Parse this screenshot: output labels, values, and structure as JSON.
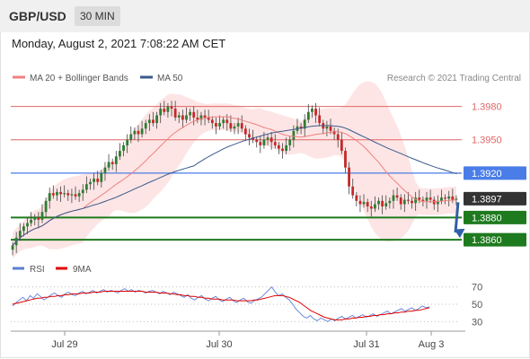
{
  "header": {
    "symbol": "GBP/USD",
    "timeframe": "30 MIN",
    "datetime": "Monday, August 2, 2021 7:08:22 AM CET",
    "credit": "Research © 2021 Trading Central"
  },
  "colors": {
    "ma20": "#f08080",
    "ma50": "#3a5a8c",
    "band_fill": "#fde0e0",
    "candle_up": "#2e7d32",
    "candle_down": "#c62828",
    "resistance": "#e06666",
    "pivot": "#4a7de8",
    "support": "#1e7a1e",
    "last_price": "#333333",
    "rsi": "#5b7fd6",
    "rsi_ma": "#e00000",
    "arrow": "#2f5fa8"
  },
  "chart_data": [
    {
      "type": "candlestick",
      "legend": [
        {
          "name": "MA 20 + Bollinger Bands",
          "color": "#f08080"
        },
        {
          "name": "MA 50",
          "color": "#3a5a8c"
        }
      ],
      "legend_placement": "top-left",
      "x_ticks": [
        "Jul 29",
        "Jul 30",
        "Jul 31",
        "Aug 3"
      ],
      "y_range": [
        1.3848,
        1.3995
      ],
      "levels": [
        {
          "kind": "resistance",
          "label": "1.3980",
          "value": 1.398
        },
        {
          "kind": "resistance",
          "label": "1.3950",
          "value": 1.395
        },
        {
          "kind": "pivot",
          "label": "1.3920",
          "value": 1.392
        },
        {
          "kind": "last",
          "label": "1.3897",
          "value": 1.3897
        },
        {
          "kind": "support",
          "label": "1.3880",
          "value": 1.388
        },
        {
          "kind": "support",
          "label": "1.3860",
          "value": 1.386
        }
      ],
      "closes": [
        1.3855,
        1.3862,
        1.3868,
        1.3872,
        1.3875,
        1.3878,
        1.388,
        1.3878,
        1.3885,
        1.3895,
        1.3902,
        1.39,
        1.3903,
        1.3901,
        1.3902,
        1.39,
        1.3901,
        1.3899,
        1.3902,
        1.3905,
        1.391,
        1.3912,
        1.3915,
        1.3912,
        1.392,
        1.3925,
        1.393,
        1.3928,
        1.3935,
        1.394,
        1.3945,
        1.395,
        1.3955,
        1.3958,
        1.3955,
        1.396,
        1.3965,
        1.3968,
        1.3965,
        1.3972,
        1.3978,
        1.3975,
        1.398,
        1.3978,
        1.397,
        1.3972,
        1.3968,
        1.3972,
        1.3975,
        1.397,
        1.3968,
        1.3972,
        1.397,
        1.3968,
        1.3965,
        1.3962,
        1.3965,
        1.3968,
        1.3965,
        1.396,
        1.3962,
        1.3965,
        1.396,
        1.3955,
        1.3952,
        1.395,
        1.3948,
        1.3945,
        1.395,
        1.3952,
        1.3948,
        1.3945,
        1.3942,
        1.394,
        1.3945,
        1.395,
        1.3958,
        1.3962,
        1.396,
        1.3968,
        1.3975,
        1.3978,
        1.3972,
        1.3965,
        1.396,
        1.3962,
        1.3958,
        1.3955,
        1.395,
        1.394,
        1.3925,
        1.3908,
        1.39,
        1.3895,
        1.3892,
        1.3894,
        1.389,
        1.3888,
        1.3892,
        1.3895,
        1.389,
        1.3893,
        1.3895,
        1.39,
        1.3898,
        1.3892,
        1.3896,
        1.3895,
        1.3893,
        1.3898,
        1.3896,
        1.3895,
        1.3898,
        1.3896,
        1.3892,
        1.3895,
        1.3898,
        1.3897,
        1.3899,
        1.3896,
        1.3897
      ]
    },
    {
      "type": "line",
      "legend": [
        {
          "name": "RSI",
          "color": "#5b7fd6"
        },
        {
          "name": "9MA",
          "color": "#e00000"
        }
      ],
      "y_range": [
        22,
        78
      ],
      "y_ticks": [
        70,
        50,
        30
      ],
      "series": [
        {
          "name": "RSI",
          "values": [
            48,
            52,
            55,
            58,
            54,
            60,
            57,
            62,
            59,
            55,
            58,
            61,
            63,
            60,
            58,
            62,
            64,
            61,
            60,
            63,
            65,
            62,
            64,
            66,
            63,
            65,
            67,
            64,
            66,
            65,
            63,
            66,
            68,
            65,
            67,
            64,
            66,
            65,
            63,
            65,
            66,
            64,
            62,
            65,
            63,
            61,
            64,
            62,
            60,
            58,
            61,
            57,
            55,
            58,
            60,
            56,
            54,
            57,
            59,
            55,
            53,
            56,
            58,
            54,
            52,
            55,
            57,
            53,
            51,
            54,
            56,
            58,
            62,
            66,
            70,
            64,
            60,
            62,
            58,
            55,
            50,
            44,
            40,
            36,
            34,
            37,
            33,
            31,
            34,
            32,
            30,
            33,
            31,
            34,
            36,
            33,
            35,
            37,
            34,
            36,
            38,
            35,
            37,
            39,
            36,
            38,
            40,
            42,
            39,
            41,
            43,
            45,
            42,
            44,
            46,
            43,
            45,
            48,
            46,
            47
          ]
        },
        {
          "name": "9MA",
          "values": [
            50,
            51,
            52,
            53,
            54,
            55,
            56,
            57,
            57,
            58,
            58,
            59,
            59,
            60,
            60,
            61,
            61,
            62,
            62,
            62,
            63,
            63,
            63,
            64,
            64,
            64,
            65,
            65,
            65,
            65,
            65,
            65,
            65,
            65,
            65,
            65,
            65,
            65,
            64,
            64,
            64,
            64,
            63,
            63,
            63,
            62,
            62,
            61,
            61,
            60,
            60,
            59,
            59,
            58,
            58,
            57,
            57,
            56,
            56,
            56,
            55,
            55,
            55,
            55,
            54,
            54,
            54,
            54,
            54,
            55,
            55,
            56,
            57,
            58,
            59,
            60,
            60,
            60,
            59,
            58,
            56,
            54,
            52,
            49,
            46,
            43,
            41,
            39,
            37,
            35,
            34,
            33,
            32,
            32,
            32,
            33,
            33,
            34,
            34,
            35,
            35,
            36,
            36,
            37,
            37,
            38,
            38,
            39,
            39,
            40,
            40,
            41,
            41,
            42,
            42,
            43,
            43,
            44,
            45,
            46
          ]
        }
      ]
    }
  ]
}
